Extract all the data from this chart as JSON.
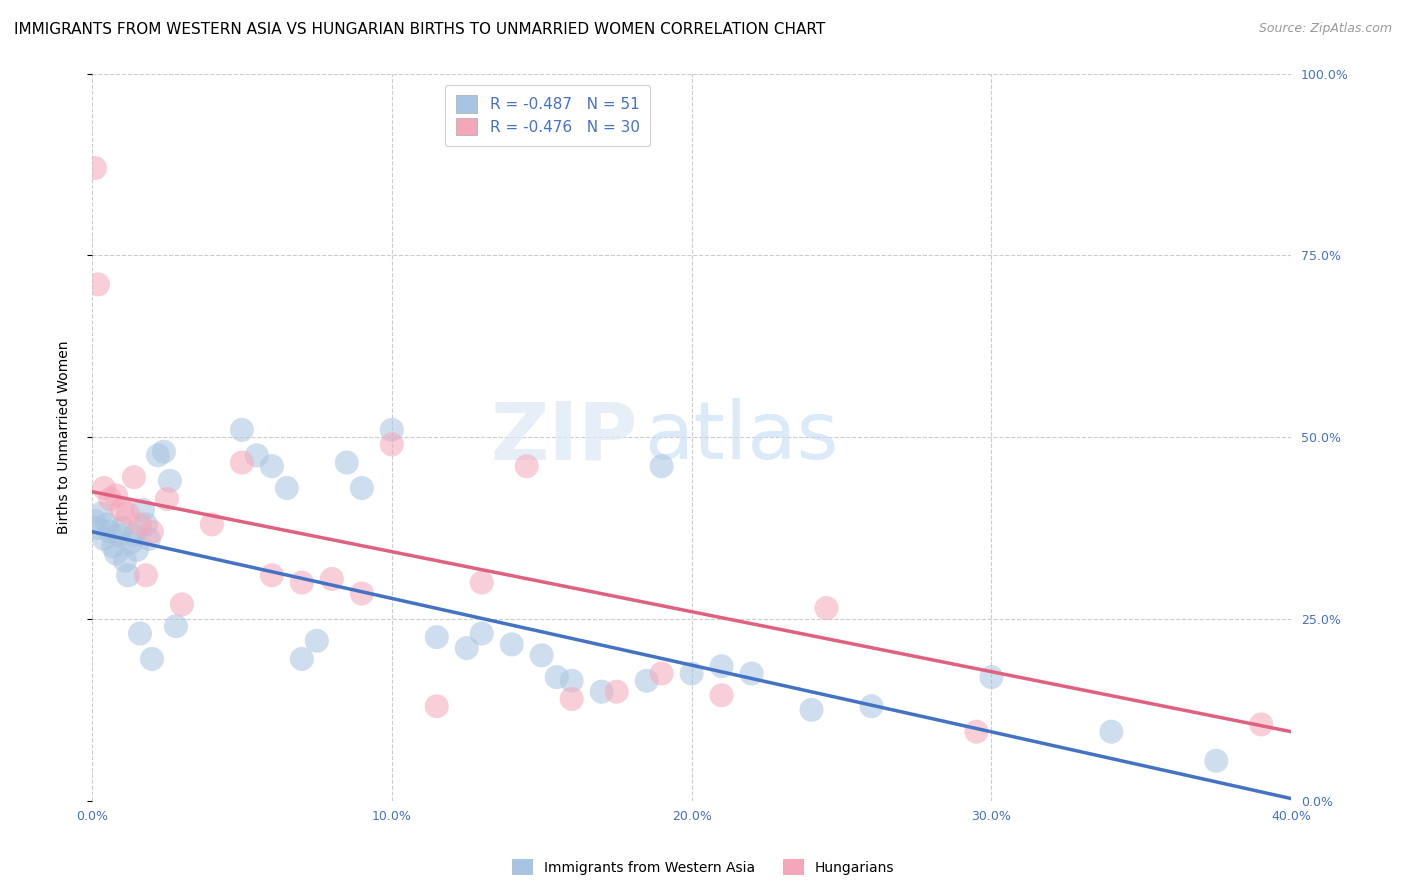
{
  "title": "IMMIGRANTS FROM WESTERN ASIA VS HUNGARIAN BIRTHS TO UNMARRIED WOMEN CORRELATION CHART",
  "source": "Source: ZipAtlas.com",
  "ylabel": "Births to Unmarried Women",
  "right_yticks": [
    0.0,
    0.25,
    0.5,
    0.75,
    1.0
  ],
  "right_yticklabels": [
    "0.0%",
    "25.0%",
    "50.0%",
    "75.0%",
    "100.0%"
  ],
  "xlim": [
    0.0,
    0.4
  ],
  "ylim": [
    0.0,
    1.0
  ],
  "xticks": [
    0.0,
    0.1,
    0.2,
    0.3,
    0.4
  ],
  "xticklabels": [
    "0.0%",
    "10.0%",
    "20.0%",
    "30.0%",
    "40.0%"
  ],
  "blue_R": -0.487,
  "blue_N": 51,
  "pink_R": -0.476,
  "pink_N": 30,
  "blue_color": "#a8c4e0",
  "pink_color": "#f4a7b9",
  "blue_line_color": "#4472c4",
  "pink_line_color": "#e06080",
  "legend_label_blue": "Immigrants from Western Asia",
  "legend_label_pink": "Hungarians",
  "watermark_zip": "ZIP",
  "watermark_atlas": "atlas",
  "blue_scatter_x": [
    0.001,
    0.002,
    0.003,
    0.004,
    0.005,
    0.006,
    0.007,
    0.008,
    0.009,
    0.01,
    0.011,
    0.012,
    0.013,
    0.014,
    0.015,
    0.016,
    0.017,
    0.018,
    0.019,
    0.02,
    0.022,
    0.024,
    0.026,
    0.028,
    0.05,
    0.055,
    0.06,
    0.065,
    0.07,
    0.075,
    0.085,
    0.09,
    0.1,
    0.115,
    0.125,
    0.13,
    0.14,
    0.15,
    0.155,
    0.16,
    0.17,
    0.185,
    0.19,
    0.2,
    0.21,
    0.22,
    0.24,
    0.26,
    0.3,
    0.34,
    0.375
  ],
  "blue_scatter_y": [
    0.385,
    0.375,
    0.395,
    0.36,
    0.38,
    0.37,
    0.35,
    0.34,
    0.365,
    0.375,
    0.33,
    0.31,
    0.355,
    0.365,
    0.345,
    0.23,
    0.4,
    0.38,
    0.36,
    0.195,
    0.475,
    0.48,
    0.44,
    0.24,
    0.51,
    0.475,
    0.46,
    0.43,
    0.195,
    0.22,
    0.465,
    0.43,
    0.51,
    0.225,
    0.21,
    0.23,
    0.215,
    0.2,
    0.17,
    0.165,
    0.15,
    0.165,
    0.46,
    0.175,
    0.185,
    0.175,
    0.125,
    0.13,
    0.17,
    0.095,
    0.055
  ],
  "pink_scatter_x": [
    0.001,
    0.002,
    0.004,
    0.006,
    0.008,
    0.01,
    0.012,
    0.014,
    0.016,
    0.018,
    0.02,
    0.025,
    0.03,
    0.04,
    0.05,
    0.06,
    0.07,
    0.08,
    0.09,
    0.1,
    0.115,
    0.13,
    0.145,
    0.16,
    0.175,
    0.19,
    0.21,
    0.245,
    0.295,
    0.39
  ],
  "pink_scatter_y": [
    0.87,
    0.71,
    0.43,
    0.415,
    0.42,
    0.4,
    0.395,
    0.445,
    0.38,
    0.31,
    0.37,
    0.415,
    0.27,
    0.38,
    0.465,
    0.31,
    0.3,
    0.305,
    0.285,
    0.49,
    0.13,
    0.3,
    0.46,
    0.14,
    0.15,
    0.175,
    0.145,
    0.265,
    0.095,
    0.105
  ],
  "blue_line_x0": 0.0,
  "blue_line_y0": 0.37,
  "blue_line_x1": 0.4,
  "blue_line_y1": 0.003,
  "pink_line_x0": 0.0,
  "pink_line_y0": 0.425,
  "pink_line_x1": 0.4,
  "pink_line_y1": 0.095,
  "title_fontsize": 11,
  "source_fontsize": 9,
  "axis_label_fontsize": 10,
  "tick_fontsize": 9,
  "legend_fontsize": 10,
  "dot_size": 300,
  "dot_alpha": 0.55
}
